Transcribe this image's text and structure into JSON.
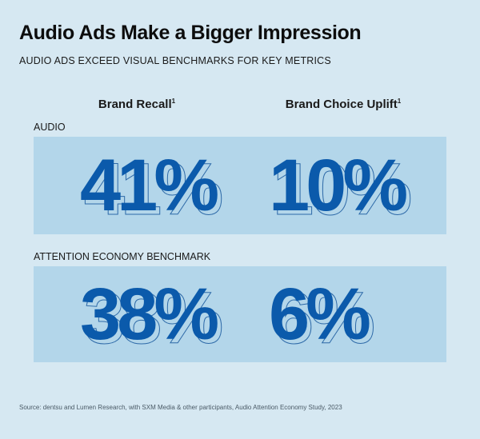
{
  "header": {
    "title": "Audio Ads Make a Bigger Impression",
    "subtitle": "AUDIO ADS EXCEED VISUAL BENCHMARKS FOR KEY METRICS"
  },
  "columns": [
    {
      "label": "Brand Recall",
      "footnote": "1"
    },
    {
      "label": "Brand Choice Uplift",
      "footnote": "1"
    }
  ],
  "rows": [
    {
      "label": "AUDIO",
      "values": [
        "41%",
        "10%"
      ]
    },
    {
      "label": "ATTENTION ECONOMY BENCHMARK",
      "values": [
        "38%",
        "6%"
      ]
    }
  ],
  "source": "Source: dentsu and Lumen Research, with SXM Media & other participants, Audio Attention Economy Study, 2023",
  "colors": {
    "background": "#d6e8f2",
    "box": "#b3d6ea",
    "stat_fill": "#0b5aab",
    "stat_outline": "#2e6aa8"
  },
  "chart_data": {
    "type": "table",
    "title": "Audio Ads Make a Bigger Impression",
    "subtitle": "AUDIO ADS EXCEED VISUAL BENCHMARKS FOR KEY METRICS",
    "categories": [
      "Brand Recall",
      "Brand Choice Uplift"
    ],
    "series": [
      {
        "name": "AUDIO",
        "values": [
          41,
          10
        ]
      },
      {
        "name": "ATTENTION ECONOMY BENCHMARK",
        "values": [
          38,
          6
        ]
      }
    ],
    "unit": "%",
    "source": "Source: dentsu and Lumen Research, with SXM Media & other participants, Audio Attention Economy Study, 2023"
  }
}
